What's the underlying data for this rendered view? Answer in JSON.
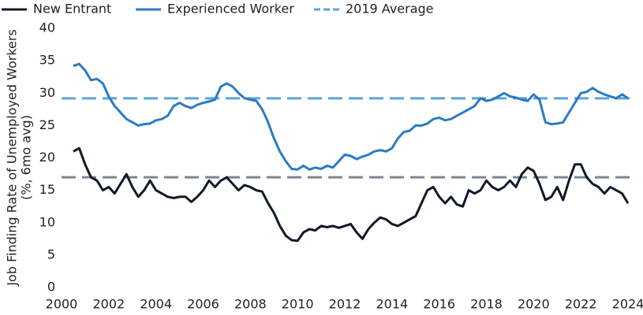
{
  "chart_data": {
    "type": "line",
    "ylabel": [
      "Job Finding Rate of Unemployed Workers",
      "(%, 6mo avg)"
    ],
    "x": [
      2000.5,
      2000.75,
      2001,
      2001.25,
      2001.5,
      2001.75,
      2002,
      2002.25,
      2002.5,
      2002.75,
      2003,
      2003.25,
      2003.5,
      2003.75,
      2004,
      2004.25,
      2004.5,
      2004.75,
      2005,
      2005.25,
      2005.5,
      2005.75,
      2006,
      2006.25,
      2006.5,
      2006.75,
      2007,
      2007.25,
      2007.5,
      2007.75,
      2008,
      2008.25,
      2008.5,
      2008.75,
      2009,
      2009.25,
      2009.5,
      2009.75,
      2010,
      2010.25,
      2010.5,
      2010.75,
      2011,
      2011.25,
      2011.5,
      2011.75,
      2012,
      2012.25,
      2012.5,
      2012.75,
      2013,
      2013.25,
      2013.5,
      2013.75,
      2014,
      2014.25,
      2014.5,
      2014.75,
      2015,
      2015.25,
      2015.5,
      2015.75,
      2016,
      2016.25,
      2016.5,
      2016.75,
      2017,
      2017.25,
      2017.5,
      2017.75,
      2018,
      2018.25,
      2018.5,
      2018.75,
      2019,
      2019.25,
      2019.5,
      2019.75,
      2020,
      2020.25,
      2020.5,
      2020.75,
      2021,
      2021.25,
      2021.5,
      2021.75,
      2022,
      2022.25,
      2022.5,
      2022.75,
      2023,
      2023.25,
      2023.5,
      2023.75,
      2024
    ],
    "series": [
      {
        "name": "New Entrant",
        "color": "#111827",
        "values": [
          21,
          21.5,
          19,
          17,
          16.5,
          15,
          15.5,
          14.5,
          16,
          17.5,
          15.5,
          14,
          15,
          16.5,
          15,
          14.5,
          14,
          13.8,
          14,
          14,
          13.2,
          14,
          15,
          16.5,
          15.5,
          16.5,
          17,
          16,
          15,
          15.8,
          15.5,
          15,
          14.8,
          13,
          11.5,
          9.5,
          8,
          7.3,
          7.2,
          8.5,
          9,
          8.8,
          9.5,
          9.3,
          9.5,
          9.2,
          9.5,
          9.8,
          8.5,
          7.5,
          9,
          10,
          10.8,
          10.5,
          9.8,
          9.5,
          10,
          10.5,
          11,
          13,
          15,
          15.5,
          14,
          13,
          14,
          12.8,
          12.5,
          15,
          14.5,
          15,
          16.5,
          15.5,
          15,
          15.5,
          16.5,
          15.5,
          17.5,
          18.5,
          18,
          16,
          13.5,
          14,
          15.5,
          13.5,
          16.5,
          19,
          19,
          17,
          16,
          15.5,
          14.5,
          15.5,
          15,
          14.5,
          13
        ]
      },
      {
        "name": "Experienced Worker",
        "color": "#2b7bc4",
        "values": [
          34.2,
          34.5,
          33.5,
          32,
          32.2,
          31.5,
          29.5,
          28,
          27,
          26,
          25.5,
          25,
          25.2,
          25.3,
          25.8,
          26,
          26.5,
          28,
          28.5,
          28,
          27.7,
          28.2,
          28.5,
          28.7,
          29,
          31,
          31.5,
          31,
          30,
          29.2,
          29,
          28.8,
          27.5,
          25.5,
          23,
          21,
          19.5,
          18.3,
          18.2,
          18.8,
          18.2,
          18.5,
          18.3,
          18.8,
          18.5,
          19.5,
          20.5,
          20.3,
          19.8,
          20.2,
          20.5,
          21,
          21.2,
          21,
          21.5,
          23,
          24,
          24.2,
          25,
          25,
          25.3,
          26,
          26.2,
          25.8,
          26,
          26.5,
          27,
          27.5,
          28,
          29.2,
          28.8,
          29,
          29.5,
          30,
          29.5,
          29.3,
          29,
          28.8,
          29.8,
          29,
          25.5,
          25.2,
          25.3,
          25.5,
          27,
          28.5,
          30,
          30.2,
          30.8,
          30.2,
          29.8,
          29.5,
          29.2,
          29.8,
          29.2
        ]
      }
    ],
    "reference_lines": [
      {
        "name": "2019 Average",
        "value": 29.2,
        "color": "#5ba3d9"
      },
      {
        "value": 17,
        "color": "#7b8794"
      }
    ],
    "xlim": [
      2000,
      2024.1
    ],
    "xticks": [
      2000,
      2002,
      2004,
      2006,
      2008,
      2010,
      2012,
      2014,
      2016,
      2018,
      2020,
      2022,
      2024
    ],
    "ylim": [
      0,
      40
    ],
    "yticks": [
      0,
      5,
      10,
      15,
      20,
      25,
      30,
      35,
      40
    ]
  }
}
